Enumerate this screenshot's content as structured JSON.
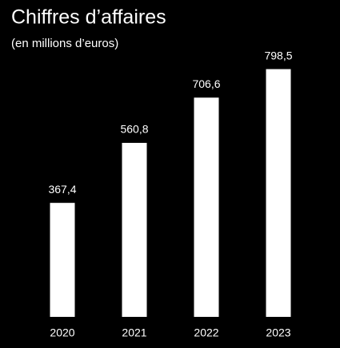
{
  "chart_data": {
    "type": "bar",
    "title": "Chiffres d’affaires",
    "subtitle": "(en millions d’euros)",
    "categories": [
      "2020",
      "2021",
      "2022",
      "2023"
    ],
    "values": [
      367.4,
      560.8,
      706.6,
      798.5
    ],
    "value_labels": [
      "367,4",
      "560,8",
      "706,6",
      "798,5"
    ],
    "color": "#ffffff",
    "ylim": [
      0,
      800
    ]
  }
}
